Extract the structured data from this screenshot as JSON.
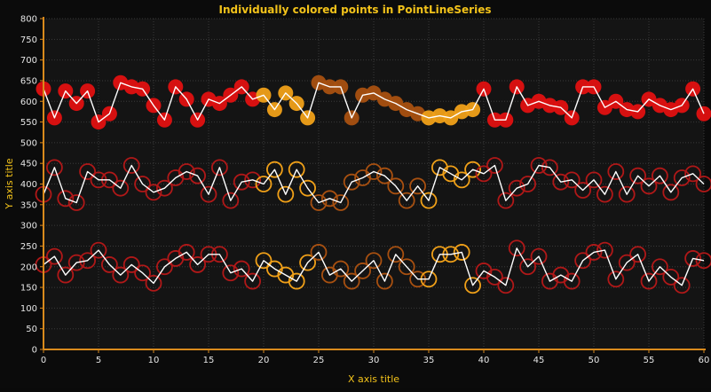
{
  "chart_data": {
    "type": "scatter",
    "title": "Individually colored points in PointLineSeries",
    "xlabel": "X axis title",
    "ylabel": "Y axis title",
    "xlim": [
      0,
      60
    ],
    "ylim": [
      0,
      800
    ],
    "xticks": [
      0,
      5,
      10,
      15,
      20,
      25,
      30,
      35,
      40,
      45,
      50,
      55,
      60
    ],
    "yticks": [
      0,
      50,
      100,
      150,
      200,
      250,
      300,
      350,
      400,
      450,
      500,
      550,
      600,
      650,
      700,
      750,
      800
    ],
    "grid": true,
    "colors": {
      "background": "#141414",
      "axis": "#d98a1c",
      "title": "#f2c21a",
      "tick_label": "#e6e6e6",
      "line": "#ffffff",
      "grid": "#3a3a3a",
      "red": "#e01010",
      "orange": "#f0a018",
      "brown": "#a85010",
      "darkred": "#b01818"
    },
    "series": [
      {
        "style": "filled",
        "points": [
          [
            0,
            630,
            "red"
          ],
          [
            1,
            560,
            "red"
          ],
          [
            2,
            625,
            "red"
          ],
          [
            3,
            595,
            "red"
          ],
          [
            4,
            625,
            "red"
          ],
          [
            5,
            550,
            "red"
          ],
          [
            6,
            570,
            "red"
          ],
          [
            7,
            645,
            "red"
          ],
          [
            8,
            635,
            "red"
          ],
          [
            9,
            630,
            "red"
          ],
          [
            10,
            590,
            "red"
          ],
          [
            11,
            555,
            "red"
          ],
          [
            12,
            635,
            "red"
          ],
          [
            13,
            605,
            "red"
          ],
          [
            14,
            555,
            "red"
          ],
          [
            15,
            605,
            "red"
          ],
          [
            16,
            595,
            "red"
          ],
          [
            17,
            615,
            "red"
          ],
          [
            18,
            635,
            "red"
          ],
          [
            19,
            605,
            "red"
          ],
          [
            20,
            615,
            "orange"
          ],
          [
            21,
            580,
            "orange"
          ],
          [
            22,
            620,
            "orange"
          ],
          [
            23,
            595,
            "orange"
          ],
          [
            24,
            560,
            "orange"
          ],
          [
            25,
            645,
            "brown"
          ],
          [
            26,
            635,
            "brown"
          ],
          [
            27,
            635,
            "brown"
          ],
          [
            28,
            560,
            "brown"
          ],
          [
            29,
            615,
            "brown"
          ],
          [
            30,
            620,
            "brown"
          ],
          [
            31,
            605,
            "brown"
          ],
          [
            32,
            595,
            "brown"
          ],
          [
            33,
            580,
            "brown"
          ],
          [
            34,
            570,
            "brown"
          ],
          [
            35,
            560,
            "orange"
          ],
          [
            36,
            565,
            "orange"
          ],
          [
            37,
            560,
            "orange"
          ],
          [
            38,
            575,
            "orange"
          ],
          [
            39,
            580,
            "orange"
          ],
          [
            40,
            630,
            "red"
          ],
          [
            41,
            555,
            "red"
          ],
          [
            42,
            555,
            "red"
          ],
          [
            43,
            635,
            "red"
          ],
          [
            44,
            590,
            "red"
          ],
          [
            45,
            600,
            "red"
          ],
          [
            46,
            590,
            "red"
          ],
          [
            47,
            585,
            "red"
          ],
          [
            48,
            560,
            "red"
          ],
          [
            49,
            635,
            "red"
          ],
          [
            50,
            635,
            "red"
          ],
          [
            51,
            585,
            "red"
          ],
          [
            52,
            600,
            "red"
          ],
          [
            53,
            580,
            "red"
          ],
          [
            54,
            575,
            "red"
          ],
          [
            55,
            605,
            "red"
          ],
          [
            56,
            590,
            "red"
          ],
          [
            57,
            580,
            "red"
          ],
          [
            58,
            590,
            "red"
          ],
          [
            59,
            630,
            "red"
          ],
          [
            60,
            570,
            "red"
          ]
        ]
      },
      {
        "style": "ring",
        "points": [
          [
            0,
            375,
            "darkred"
          ],
          [
            1,
            440,
            "darkred"
          ],
          [
            2,
            365,
            "darkred"
          ],
          [
            3,
            355,
            "darkred"
          ],
          [
            4,
            430,
            "darkred"
          ],
          [
            5,
            410,
            "darkred"
          ],
          [
            6,
            410,
            "darkred"
          ],
          [
            7,
            390,
            "darkred"
          ],
          [
            8,
            445,
            "darkred"
          ],
          [
            9,
            400,
            "darkred"
          ],
          [
            10,
            380,
            "darkred"
          ],
          [
            11,
            390,
            "darkred"
          ],
          [
            12,
            415,
            "darkred"
          ],
          [
            13,
            430,
            "darkred"
          ],
          [
            14,
            420,
            "darkred"
          ],
          [
            15,
            375,
            "darkred"
          ],
          [
            16,
            440,
            "darkred"
          ],
          [
            17,
            360,
            "darkred"
          ],
          [
            18,
            405,
            "darkred"
          ],
          [
            19,
            410,
            "darkred"
          ],
          [
            20,
            400,
            "orange"
          ],
          [
            21,
            435,
            "orange"
          ],
          [
            22,
            375,
            "orange"
          ],
          [
            23,
            435,
            "orange"
          ],
          [
            24,
            390,
            "orange"
          ],
          [
            25,
            355,
            "brown"
          ],
          [
            26,
            365,
            "brown"
          ],
          [
            27,
            355,
            "brown"
          ],
          [
            28,
            405,
            "brown"
          ],
          [
            29,
            415,
            "brown"
          ],
          [
            30,
            430,
            "brown"
          ],
          [
            31,
            420,
            "brown"
          ],
          [
            32,
            395,
            "brown"
          ],
          [
            33,
            360,
            "brown"
          ],
          [
            34,
            395,
            "brown"
          ],
          [
            35,
            360,
            "orange"
          ],
          [
            36,
            440,
            "orange"
          ],
          [
            37,
            425,
            "orange"
          ],
          [
            38,
            410,
            "orange"
          ],
          [
            39,
            435,
            "orange"
          ],
          [
            40,
            425,
            "darkred"
          ],
          [
            41,
            445,
            "darkred"
          ],
          [
            42,
            360,
            "darkred"
          ],
          [
            43,
            390,
            "darkred"
          ],
          [
            44,
            400,
            "darkred"
          ],
          [
            45,
            445,
            "darkred"
          ],
          [
            46,
            440,
            "darkred"
          ],
          [
            47,
            405,
            "darkred"
          ],
          [
            48,
            410,
            "darkred"
          ],
          [
            49,
            385,
            "darkred"
          ],
          [
            50,
            410,
            "darkred"
          ],
          [
            51,
            375,
            "darkred"
          ],
          [
            52,
            430,
            "darkred"
          ],
          [
            53,
            375,
            "darkred"
          ],
          [
            54,
            420,
            "darkred"
          ],
          [
            55,
            395,
            "darkred"
          ],
          [
            56,
            420,
            "darkred"
          ],
          [
            57,
            380,
            "darkred"
          ],
          [
            58,
            415,
            "darkred"
          ],
          [
            59,
            425,
            "darkred"
          ],
          [
            60,
            400,
            "darkred"
          ]
        ]
      },
      {
        "style": "ring",
        "points": [
          [
            0,
            205,
            "darkred"
          ],
          [
            1,
            225,
            "darkred"
          ],
          [
            2,
            180,
            "darkred"
          ],
          [
            3,
            210,
            "darkred"
          ],
          [
            4,
            215,
            "darkred"
          ],
          [
            5,
            240,
            "darkred"
          ],
          [
            6,
            205,
            "darkred"
          ],
          [
            7,
            180,
            "darkred"
          ],
          [
            8,
            205,
            "darkred"
          ],
          [
            9,
            185,
            "darkred"
          ],
          [
            10,
            160,
            "darkred"
          ],
          [
            11,
            200,
            "darkred"
          ],
          [
            12,
            220,
            "darkred"
          ],
          [
            13,
            235,
            "darkred"
          ],
          [
            14,
            205,
            "darkred"
          ],
          [
            15,
            230,
            "darkred"
          ],
          [
            16,
            230,
            "darkred"
          ],
          [
            17,
            185,
            "darkred"
          ],
          [
            18,
            195,
            "darkred"
          ],
          [
            19,
            165,
            "darkred"
          ],
          [
            20,
            215,
            "orange"
          ],
          [
            21,
            195,
            "orange"
          ],
          [
            22,
            180,
            "orange"
          ],
          [
            23,
            165,
            "orange"
          ],
          [
            24,
            210,
            "orange"
          ],
          [
            25,
            235,
            "brown"
          ],
          [
            26,
            180,
            "brown"
          ],
          [
            27,
            195,
            "brown"
          ],
          [
            28,
            165,
            "brown"
          ],
          [
            29,
            190,
            "brown"
          ],
          [
            30,
            215,
            "brown"
          ],
          [
            31,
            165,
            "brown"
          ],
          [
            32,
            230,
            "brown"
          ],
          [
            33,
            200,
            "brown"
          ],
          [
            34,
            170,
            "brown"
          ],
          [
            35,
            170,
            "orange"
          ],
          [
            36,
            230,
            "orange"
          ],
          [
            37,
            230,
            "orange"
          ],
          [
            38,
            235,
            "orange"
          ],
          [
            39,
            155,
            "orange"
          ],
          [
            40,
            190,
            "darkred"
          ],
          [
            41,
            175,
            "darkred"
          ],
          [
            42,
            155,
            "darkred"
          ],
          [
            43,
            245,
            "darkred"
          ],
          [
            44,
            200,
            "darkred"
          ],
          [
            45,
            225,
            "darkred"
          ],
          [
            46,
            165,
            "darkred"
          ],
          [
            47,
            180,
            "darkred"
          ],
          [
            48,
            165,
            "darkred"
          ],
          [
            49,
            215,
            "darkred"
          ],
          [
            50,
            235,
            "darkred"
          ],
          [
            51,
            240,
            "darkred"
          ],
          [
            52,
            170,
            "darkred"
          ],
          [
            53,
            210,
            "darkred"
          ],
          [
            54,
            230,
            "darkred"
          ],
          [
            55,
            165,
            "darkred"
          ],
          [
            56,
            200,
            "darkred"
          ],
          [
            57,
            175,
            "darkred"
          ],
          [
            58,
            155,
            "darkred"
          ],
          [
            59,
            220,
            "darkred"
          ],
          [
            60,
            215,
            "darkred"
          ]
        ]
      }
    ]
  }
}
